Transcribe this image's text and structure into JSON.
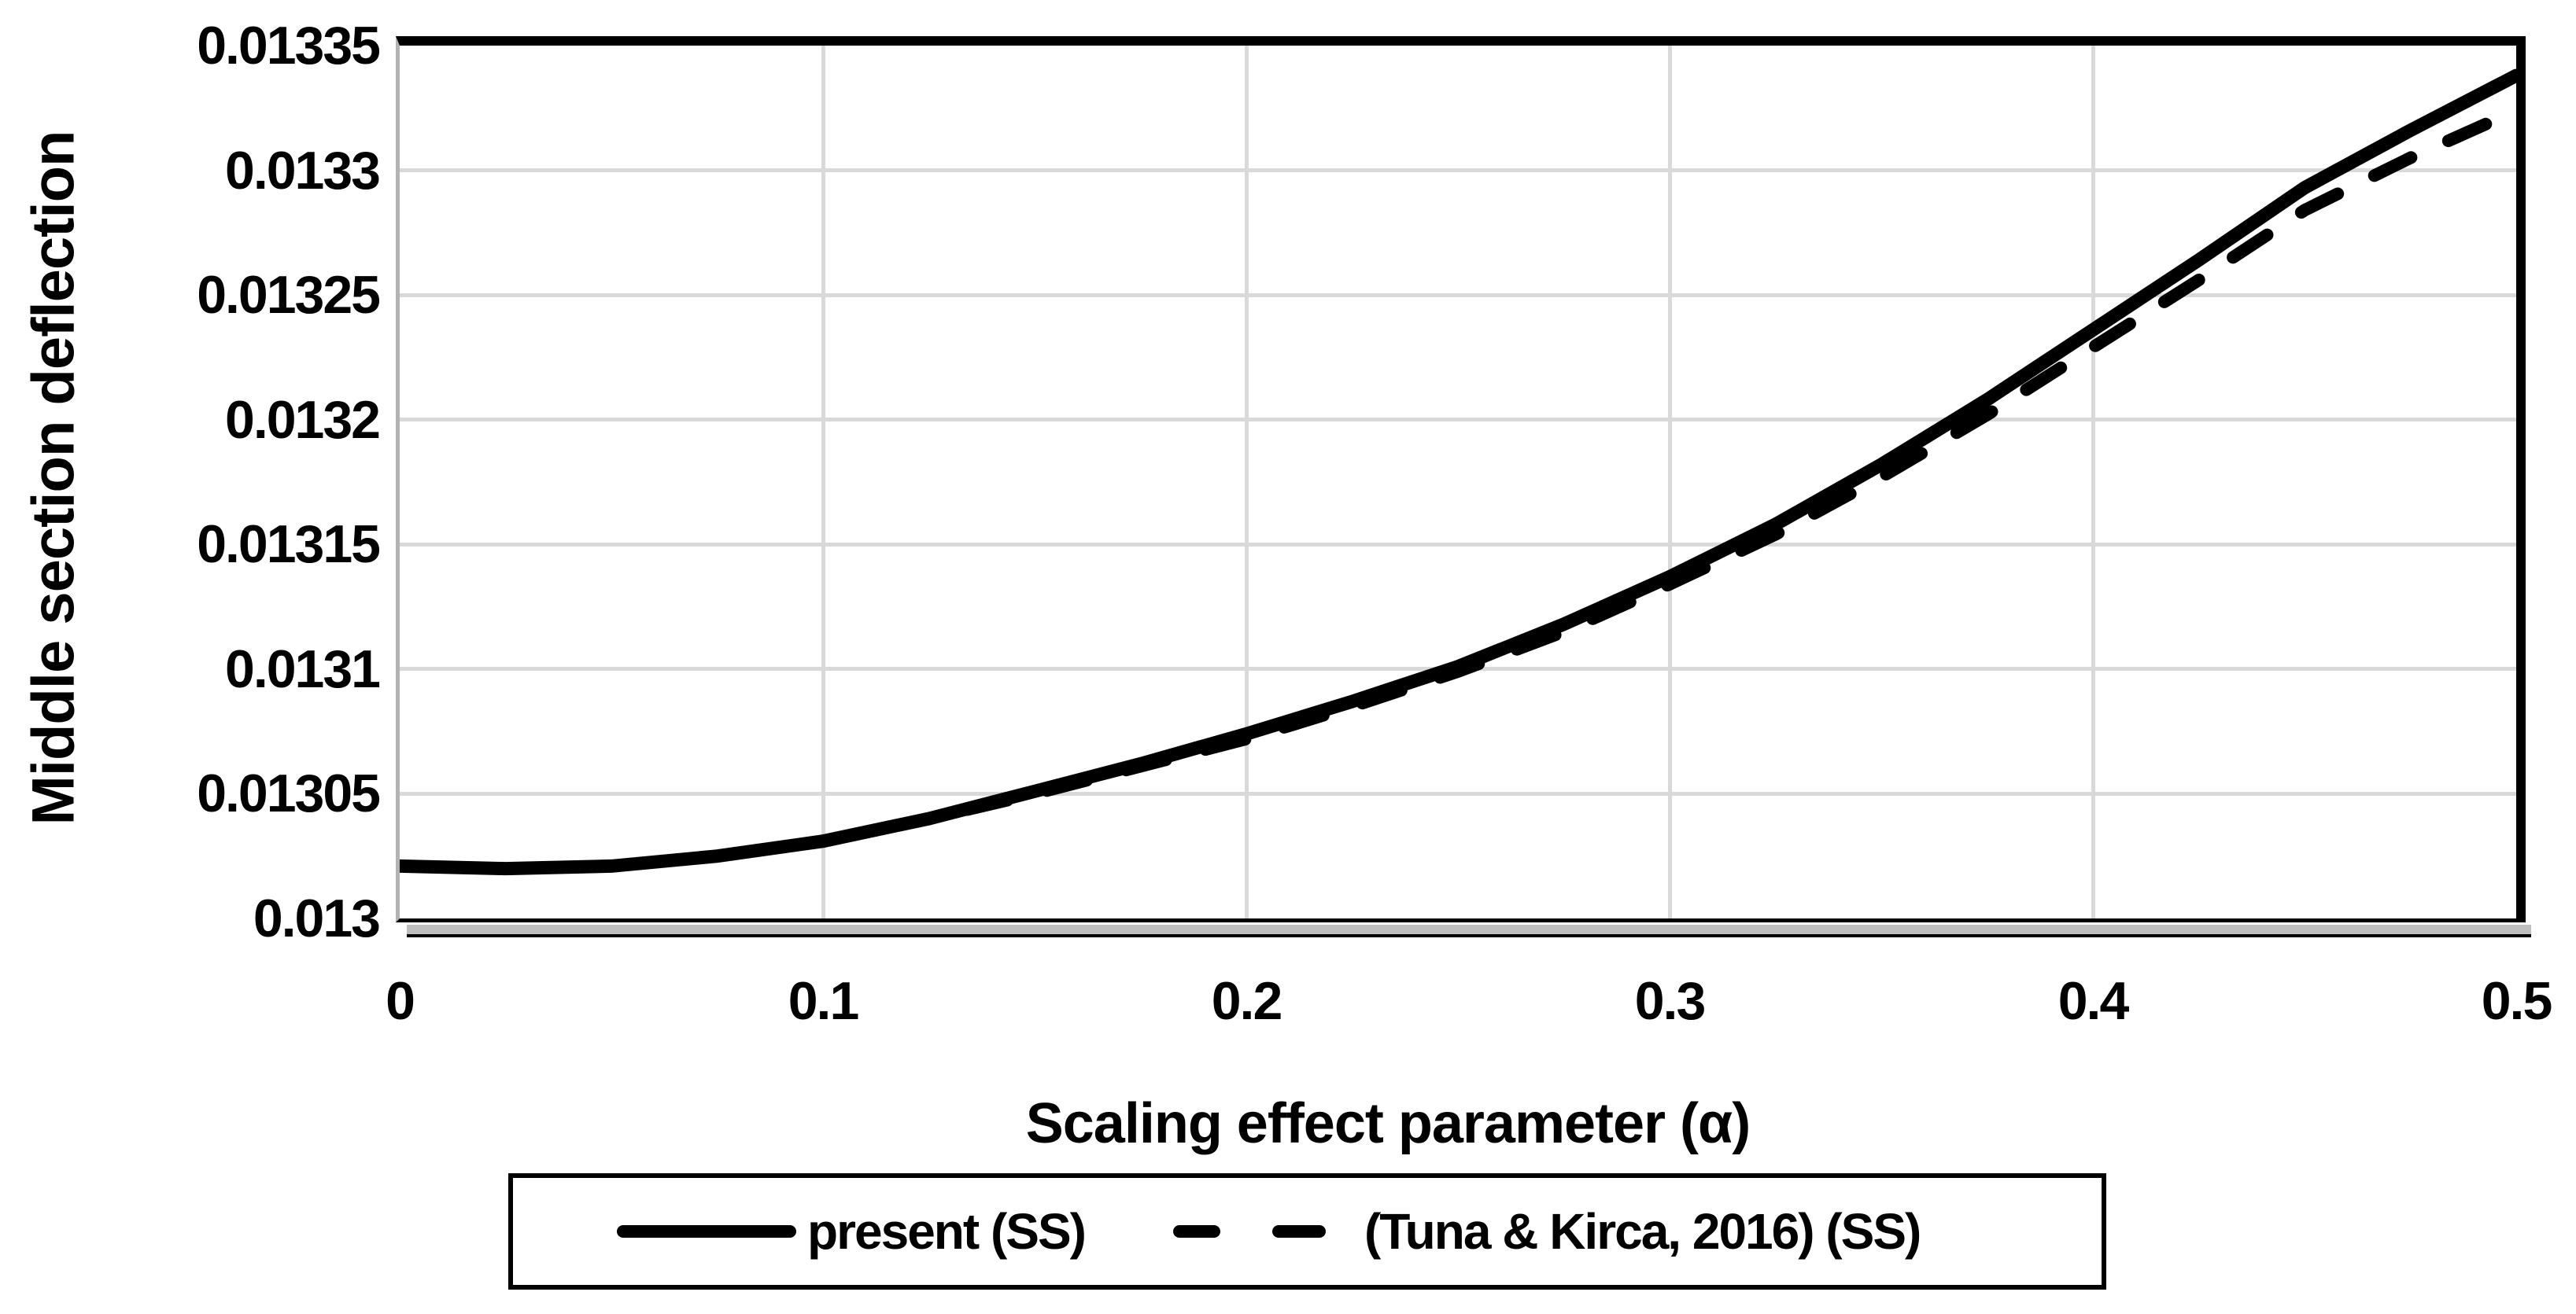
{
  "chart_data": {
    "type": "line",
    "title": "",
    "xlabel": "Scaling effect parameter (α)",
    "ylabel": "Middle section deflection",
    "xlim": [
      0,
      0.5
    ],
    "ylim": [
      0.013,
      0.01335
    ],
    "grid": true,
    "legend_position": "bottom",
    "x_ticks": [
      "0",
      "0.1",
      "0.2",
      "0.3",
      "0.4",
      "0.5"
    ],
    "x_tick_values": [
      0,
      0.1,
      0.2,
      0.3,
      0.4,
      0.5
    ],
    "y_ticks": [
      "0.01335",
      "0.0133",
      "0.01325",
      "0.0132",
      "0.01315",
      "0.0131",
      "0.01305",
      "0.013"
    ],
    "y_tick_values": [
      0.01335,
      0.0133,
      0.01325,
      0.0132,
      0.01315,
      0.0131,
      0.01305,
      0.013
    ],
    "x": [
      0,
      0.025,
      0.05,
      0.075,
      0.1,
      0.125,
      0.15,
      0.175,
      0.2,
      0.225,
      0.25,
      0.275,
      0.3,
      0.325,
      0.35,
      0.375,
      0.4,
      0.425,
      0.45,
      0.475,
      0.5
    ],
    "series": [
      {
        "name": "present (SS)",
        "style": "solid",
        "color": "#000000",
        "values": [
          0.013021,
          0.01302,
          0.013021,
          0.013025,
          0.013031,
          0.01304,
          0.013051,
          0.013062,
          0.013074,
          0.013087,
          0.013101,
          0.013118,
          0.013137,
          0.013158,
          0.013182,
          0.013208,
          0.013236,
          0.013264,
          0.013293,
          0.013316,
          0.013338
        ]
      },
      {
        "name": "(Tuna & Kirca, 2016) (SS)",
        "style": "dashed",
        "color": "#000000",
        "values": [
          0.013021,
          0.01302,
          0.013021,
          0.013025,
          0.013031,
          0.01304,
          0.01305,
          0.013061,
          0.013072,
          0.013085,
          0.013099,
          0.013115,
          0.013134,
          0.013154,
          0.013177,
          0.013202,
          0.013229,
          0.013256,
          0.013284,
          0.013305,
          0.013324
        ]
      }
    ]
  },
  "colors": {
    "background": "#ffffff",
    "line": "#000000",
    "gridline": "#d9d9d9",
    "plot_border_dark": "#000000",
    "plot_border_light": "#b3b3b3",
    "shadow": "#bfbfbf"
  }
}
